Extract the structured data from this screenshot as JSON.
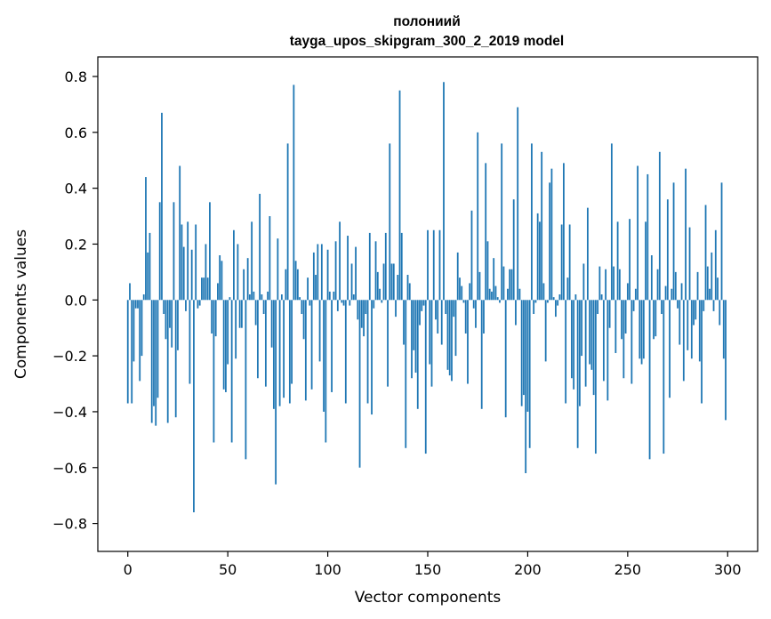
{
  "chart_data": {
    "type": "bar",
    "title": "полониий",
    "subtitle": "tayga_upos_skipgram_300_2_2019 model",
    "xlabel": "Vector components",
    "ylabel": "Components values",
    "xlim": [
      -15,
      315
    ],
    "ylim": [
      -0.9,
      0.87
    ],
    "x_ticks": [
      0,
      50,
      100,
      150,
      200,
      250,
      300
    ],
    "x_tick_labels": [
      "0",
      "50",
      "100",
      "150",
      "200",
      "250",
      "300"
    ],
    "y_ticks": [
      0.8,
      0.6,
      0.4,
      0.2,
      0.0,
      -0.2,
      -0.4,
      -0.6,
      -0.8
    ],
    "y_tick_labels": [
      "0.8",
      "0.6",
      "0.4",
      "0.2",
      "0.0",
      "−0.2",
      "−0.4",
      "−0.6",
      "−0.8"
    ],
    "bar_color": "#1f77b4",
    "grid": false,
    "series": [
      {
        "values": [
          -0.37,
          0.06,
          -0.37,
          -0.22,
          -0.03,
          -0.03,
          -0.29,
          -0.2,
          0.02,
          0.44,
          0.17,
          0.24,
          -0.44,
          -0.38,
          -0.45,
          -0.35,
          0.35,
          0.67,
          -0.05,
          -0.14,
          -0.44,
          -0.1,
          -0.17,
          0.35,
          -0.42,
          -0.18,
          0.48,
          0.27,
          0.19,
          -0.04,
          0.28,
          -0.3,
          0.18,
          -0.76,
          0.27,
          -0.03,
          -0.02,
          0.08,
          0.08,
          0.2,
          0.08,
          0.35,
          -0.12,
          -0.51,
          -0.13,
          0.06,
          0.16,
          0.14,
          -0.32,
          -0.33,
          -0.23,
          0.01,
          -0.51,
          0.25,
          -0.21,
          0.2,
          -0.1,
          -0.1,
          0.11,
          -0.57,
          0.15,
          0.02,
          0.28,
          0.03,
          -0.09,
          -0.28,
          0.38,
          0.02,
          -0.05,
          -0.31,
          0.03,
          0.3,
          -0.17,
          -0.39,
          -0.66,
          0.22,
          -0.38,
          0.02,
          -0.35,
          0.11,
          0.56,
          -0.37,
          -0.3,
          0.77,
          0.14,
          0.11,
          0.01,
          -0.05,
          -0.14,
          -0.36,
          0.08,
          -0.02,
          -0.32,
          0.17,
          0.09,
          0.2,
          -0.22,
          0.2,
          -0.4,
          -0.51,
          0.18,
          0.03,
          -0.33,
          0.03,
          0.21,
          -0.04,
          0.28,
          -0.01,
          -0.02,
          -0.37,
          0.23,
          -0.02,
          0.13,
          0.02,
          0.19,
          -0.07,
          -0.6,
          -0.1,
          -0.13,
          -0.05,
          -0.37,
          0.24,
          -0.41,
          -0.03,
          0.21,
          0.1,
          0.04,
          -0.01,
          0.13,
          0.24,
          -0.31,
          0.56,
          0.13,
          0.13,
          -0.06,
          0.09,
          0.75,
          0.24,
          -0.16,
          -0.53,
          0.09,
          0.06,
          -0.28,
          -0.18,
          -0.26,
          -0.39,
          -0.09,
          -0.04,
          -0.02,
          -0.55,
          0.25,
          -0.23,
          -0.31,
          0.25,
          -0.07,
          -0.12,
          0.25,
          -0.16,
          0.78,
          -0.05,
          -0.25,
          -0.27,
          -0.29,
          -0.06,
          -0.2,
          0.17,
          0.08,
          0.05,
          -0.01,
          -0.12,
          -0.3,
          0.06,
          0.32,
          -0.03,
          -0.1,
          0.6,
          0.1,
          -0.39,
          -0.12,
          0.49,
          0.21,
          0.04,
          0.03,
          0.15,
          0.05,
          0.01,
          -0.01,
          0.56,
          0.12,
          -0.42,
          0.04,
          0.11,
          0.11,
          0.36,
          -0.09,
          0.69,
          0.04,
          -0.38,
          -0.34,
          -0.62,
          -0.4,
          -0.53,
          0.56,
          -0.05,
          -0.01,
          0.31,
          0.28,
          0.53,
          0.06,
          -0.22,
          -0.01,
          0.42,
          0.47,
          0.01,
          -0.06,
          -0.02,
          0.02,
          0.27,
          0.49,
          -0.37,
          0.08,
          0.27,
          -0.28,
          -0.32,
          0.02,
          -0.53,
          -0.38,
          -0.2,
          0.13,
          -0.31,
          0.33,
          -0.23,
          -0.25,
          -0.34,
          -0.55,
          -0.05,
          0.12,
          0.02,
          -0.29,
          0.11,
          -0.36,
          -0.1,
          0.56,
          0.12,
          -0.19,
          0.28,
          0.11,
          -0.14,
          -0.28,
          -0.12,
          0.06,
          0.29,
          -0.3,
          -0.04,
          0.04,
          0.48,
          -0.21,
          -0.23,
          -0.21,
          0.28,
          0.45,
          -0.57,
          0.16,
          -0.14,
          -0.13,
          0.11,
          0.53,
          -0.05,
          -0.55,
          0.05,
          0.36,
          -0.35,
          0.04,
          0.42,
          0.1,
          -0.03,
          -0.16,
          0.06,
          -0.29,
          0.47,
          -0.18,
          0.26,
          -0.21,
          -0.09,
          -0.07,
          0.1,
          -0.22,
          -0.37,
          -0.04,
          0.34,
          0.12,
          0.04,
          0.17,
          -0.04,
          0.25,
          0.08,
          -0.09,
          0.42,
          -0.21,
          -0.43
        ]
      }
    ]
  }
}
